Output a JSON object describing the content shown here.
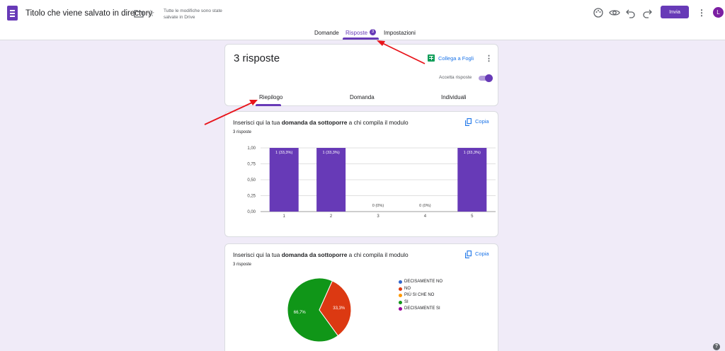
{
  "header": {
    "doc_title": "Titolo che viene salvato in directory",
    "save_status": "Tutte le modifiche sono state salvate in Drive",
    "send_label": "Invia",
    "avatar_letter": "L",
    "icons": [
      "palette-icon",
      "eye-icon",
      "undo-icon",
      "redo-icon",
      "more-vert-icon"
    ]
  },
  "tabs": [
    {
      "label": "Domande"
    },
    {
      "label": "Risposte",
      "badge": "3",
      "active": true
    },
    {
      "label": "Impostazioni"
    }
  ],
  "summary": {
    "title": "3 risposte",
    "sheets_link": "Collega a Fogli",
    "accept_label": "Accetta risposte",
    "accepting": true,
    "subtabs": [
      {
        "label": "Riepilogo",
        "active": true
      },
      {
        "label": "Domanda"
      },
      {
        "label": "Individuali"
      }
    ]
  },
  "questions": [
    {
      "title_pre": "Inserisci qui la tua ",
      "title_bold": "domanda da sottoporre",
      "title_post": " a chi compila il modulo",
      "count": "3 risposte",
      "copy_label": "Copia"
    },
    {
      "title_pre": "Inserisci qui la tua ",
      "title_bold": "domanda da sottoporre",
      "title_post": " a chi compila il modulo",
      "count": "3 risposte",
      "copy_label": "Copia"
    }
  ],
  "chart_data": [
    {
      "type": "bar",
      "categories": [
        "1",
        "2",
        "3",
        "4",
        "5"
      ],
      "values": [
        1,
        1,
        0,
        0,
        1
      ],
      "data_labels": [
        "1 (33,3%)",
        "1 (33,3%)",
        "0 (0%)",
        "0 (0%)",
        "1 (33,3%)"
      ],
      "y_ticks": [
        "0,00",
        "0,25",
        "0,50",
        "0,75",
        "1,00"
      ],
      "ylim": [
        0,
        1
      ],
      "color": "#673ab7"
    },
    {
      "type": "pie",
      "categories": [
        "DECISAMENTE NO",
        "NO",
        "PIÙ SI CHE NO",
        "SI",
        "DECISAMENTE SI"
      ],
      "values": [
        0,
        33.3,
        0,
        66.7,
        0
      ],
      "data_labels": [
        "",
        "33,3%",
        "",
        "66,7%",
        ""
      ],
      "colors": [
        "#3366cc",
        "#dc3912",
        "#ff9900",
        "#109618",
        "#990099"
      ]
    }
  ]
}
